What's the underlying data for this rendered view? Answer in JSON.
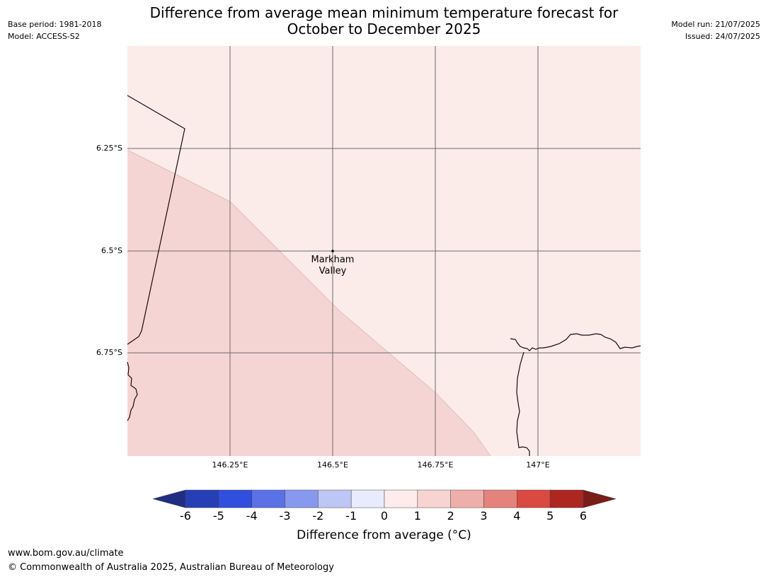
{
  "meta": {
    "base_period": "Base period: 1981-2018",
    "model": "Model: ACCESS-S2",
    "model_run": "Model run: 21/07/2025",
    "issued": "Issued: 24/07/2025"
  },
  "title": {
    "line1": "Difference from average mean minimum temperature forecast for",
    "line2": "October to December 2025"
  },
  "map": {
    "place": {
      "line1": "Markham",
      "line2": "Valley"
    },
    "lat_labels": [
      "6.25°S",
      "6.5°S",
      "6.75°S"
    ],
    "lon_labels": [
      "146.25°E",
      "146.5°E",
      "146.75°E",
      "147°E"
    ],
    "fill_colors": {
      "band_0_1": "#fbebe9",
      "band_1_2": "#f5d5d3"
    }
  },
  "colorbar": {
    "ticks": [
      "-6",
      "-5",
      "-4",
      "-3",
      "-2",
      "-1",
      "0",
      "1",
      "2",
      "3",
      "4",
      "5",
      "6"
    ],
    "colors": [
      "#1f2e82",
      "#263eb6",
      "#314fdf",
      "#5a72e6",
      "#8798ee",
      "#bec6f5",
      "#e8ebfc",
      "#fdeceb",
      "#f7d4d2",
      "#eeaea9",
      "#e5827c",
      "#db4a40",
      "#ad2620",
      "#7a1c17"
    ],
    "label": "Difference from average (°C)"
  },
  "footer": {
    "url": "www.bom.gov.au/climate",
    "copyright": "© Commonwealth of Australia 2025, Australian Bureau of Meteorology"
  }
}
